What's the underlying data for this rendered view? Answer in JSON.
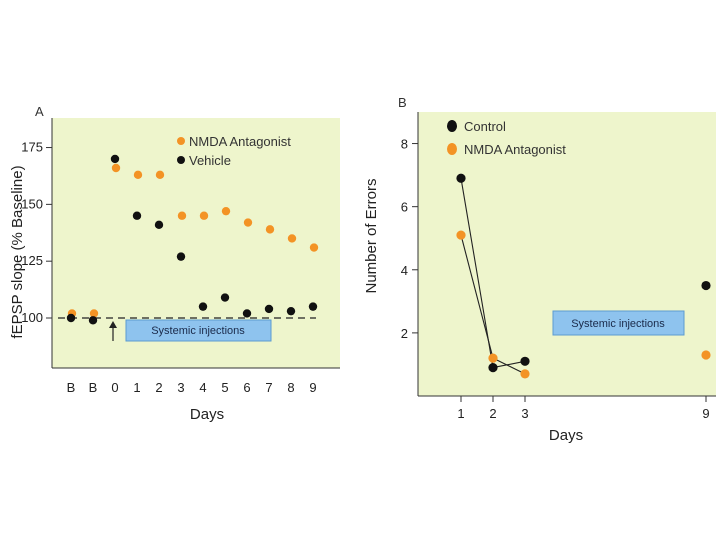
{
  "colors": {
    "panel_bg": "#eef5cc",
    "vehicle": "#111111",
    "nmda": "#f39325",
    "box_fill": "#8ec3ee",
    "box_stroke": "#5c9bd0"
  },
  "chart_data": [
    {
      "type": "scatter",
      "panel_label": "A",
      "ylabel": "fEPSP slope (% Baseline)",
      "xlabel": "Days",
      "categories": [
        "B",
        "B",
        "0",
        "1",
        "2",
        "3",
        "4",
        "5",
        "6",
        "7",
        "8",
        "9"
      ],
      "yticks": [
        100,
        125,
        150,
        175
      ],
      "ylim": [
        78,
        188
      ],
      "baseline": 100,
      "annotation": "Systemic injections",
      "series": [
        {
          "name": "NMDA Antagonist",
          "values": [
            102,
            102,
            166,
            163,
            163,
            145,
            145,
            147,
            142,
            139,
            135,
            131
          ]
        },
        {
          "name": "Vehicle",
          "values": [
            100,
            99,
            170,
            145,
            141,
            127,
            105,
            109,
            102,
            104,
            103,
            105
          ]
        }
      ]
    },
    {
      "type": "line",
      "panel_label": "B",
      "ylabel": "Number of Errors",
      "xlabel": "Days",
      "x": [
        1,
        2,
        3,
        9
      ],
      "xticks": [
        "1",
        "2",
        "3",
        "9"
      ],
      "yticks": [
        2,
        4,
        6,
        8
      ],
      "ylim": [
        0,
        9
      ],
      "annotation": "Systemic injections",
      "series": [
        {
          "name": "Control",
          "values": [
            6.9,
            0.9,
            1.1,
            3.5
          ]
        },
        {
          "name": "NMDA Antagonist",
          "values": [
            5.1,
            1.2,
            0.7,
            1.3
          ]
        }
      ]
    }
  ]
}
